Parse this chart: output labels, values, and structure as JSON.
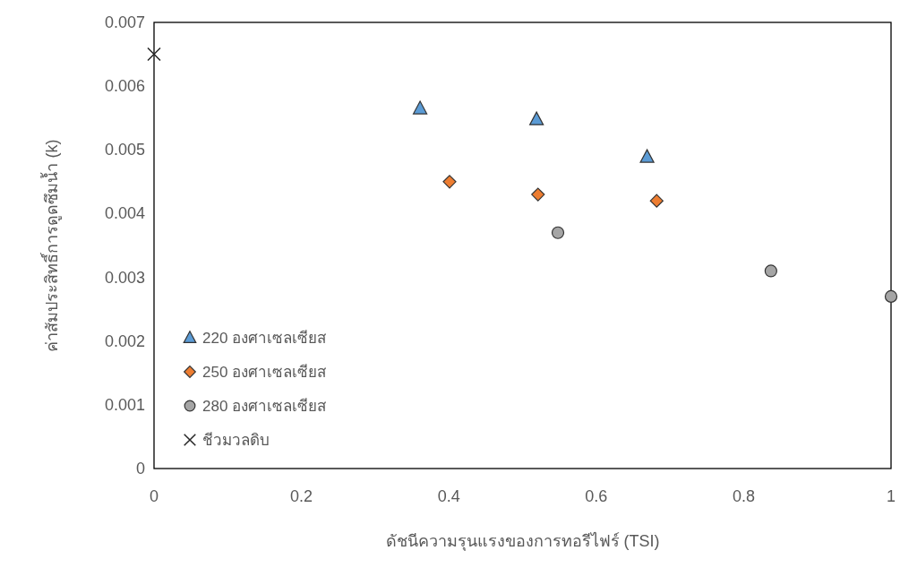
{
  "chart_data": {
    "type": "scatter",
    "xlabel": "ดัชนีความรุนแรงของการทอรีไฟร์ (TSI)",
    "ylabel": "ค่าสัมประสิทธิ์การดูดซึมน้ำ (k)",
    "xlim": [
      0,
      1
    ],
    "ylim": [
      0,
      0.007
    ],
    "xticks": [
      0,
      0.2,
      0.4,
      0.6,
      0.8,
      1
    ],
    "yticks": [
      0,
      0.001,
      0.002,
      0.003,
      0.004,
      0.005,
      0.006,
      0.007
    ],
    "legend": "bottom left",
    "series": [
      {
        "name": "220 องศาเซลเซียส",
        "color": "#5b9bd5",
        "marker": "triangle",
        "x": [
          0.361,
          0.519,
          0.669
        ],
        "values": [
          0.00565,
          0.00548,
          0.00489
        ]
      },
      {
        "name": "250 องศาเซลเซียส",
        "color": "#ed7d31",
        "marker": "diamond",
        "x": [
          0.401,
          0.521,
          0.682
        ],
        "values": [
          0.0045,
          0.0043,
          0.0042
        ]
      },
      {
        "name": "280 องศาเซลเซียส",
        "color": "#a5a5a5",
        "marker": "circle",
        "x": [
          0.548,
          0.837,
          1.0
        ],
        "values": [
          0.0037,
          0.0031,
          0.0027
        ]
      },
      {
        "name": "ชีวมวลดิบ",
        "color": "#262626",
        "marker": "cross",
        "x": [
          0
        ],
        "values": [
          0.0065
        ]
      }
    ]
  }
}
